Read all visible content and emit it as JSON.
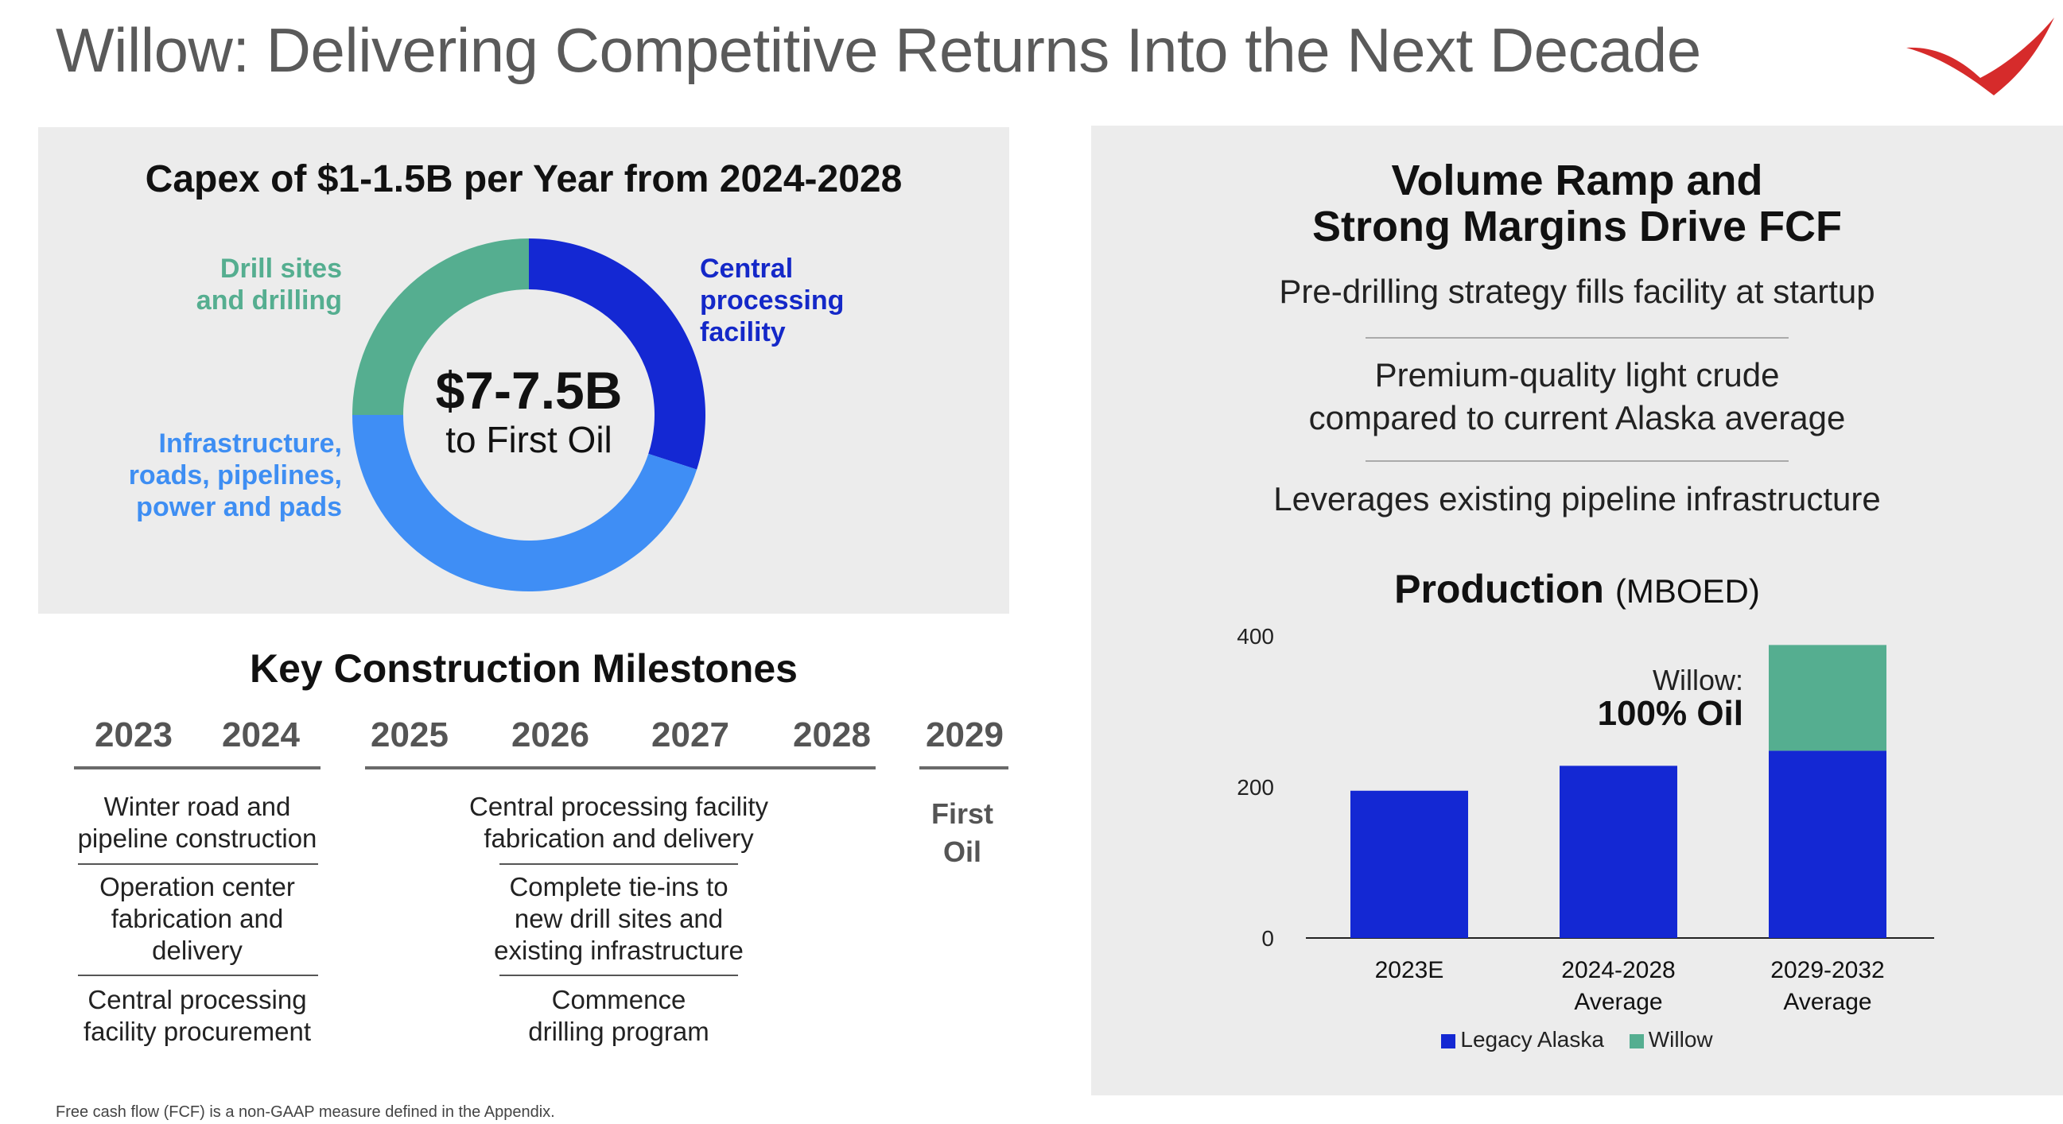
{
  "title": "Willow: Delivering Competitive Returns Into the Next Decade",
  "footnote": "Free cash flow (FCF) is a non-GAAP measure defined in the Appendix.",
  "colors": {
    "legacy": "#1428d3",
    "willow": "#55ae90",
    "cpf": "#1428d3",
    "infra": "#3f8ef5",
    "drill": "#55ae90",
    "logo": "#d62b2b"
  },
  "capex": {
    "title": "Capex of $1-1.5B per Year from 2024-2028",
    "center_big": "$7-7.5B",
    "center_small": "to First Oil",
    "segments": [
      {
        "label": "Central processing facility",
        "lines": [
          "Central",
          "processing",
          "facility"
        ],
        "share": 0.3,
        "color": "#1428d3"
      },
      {
        "label": "Infrastructure, roads, pipelines, power and pads",
        "lines": [
          "Infrastructure,",
          "roads, pipelines,",
          "power and pads"
        ],
        "share": 0.45,
        "color": "#3f8ef5"
      },
      {
        "label": "Drill sites and drilling",
        "lines": [
          "Drill sites",
          "and drilling"
        ],
        "share": 0.25,
        "color": "#55ae90"
      }
    ]
  },
  "milestones": {
    "title": "Key Construction Milestones",
    "years": [
      "2023",
      "2024",
      "2025",
      "2026",
      "2027",
      "2028",
      "2029"
    ],
    "col1": [
      "Winter road and\npipeline construction",
      "Operation center\nfabrication and\ndelivery",
      "Central processing\nfacility procurement"
    ],
    "col2": [
      "Central processing facility\nfabrication and delivery",
      "Complete tie-ins to\nnew drill sites and\nexisting infrastructure",
      "Commence\ndrilling program"
    ],
    "first_oil": "First\nOil"
  },
  "volume": {
    "title_line1": "Volume Ramp and",
    "title_line2": "Strong Margins Drive FCF",
    "bullets": [
      "Pre-drilling strategy fills facility at startup",
      "Premium-quality light crude\ncompared to current Alaska average",
      "Leverages existing pipeline infrastructure"
    ]
  },
  "production": {
    "title_bold": "Production",
    "title_unit": "(MBOED)",
    "annotation_line1": "Willow:",
    "annotation_line2": "100% Oil"
  },
  "chart_data": {
    "type": "bar",
    "stacked": true,
    "categories": [
      "2023E",
      "2024-2028\nAverage",
      "2029-2032\nAverage"
    ],
    "series": [
      {
        "name": "Legacy Alaska",
        "values": [
          195,
          228,
          248
        ],
        "color": "#1428d3"
      },
      {
        "name": "Willow",
        "values": [
          0,
          0,
          140
        ],
        "color": "#55ae90"
      }
    ],
    "yticks": [
      0,
      200,
      400
    ],
    "ylim": [
      0,
      400
    ],
    "legend_position": "bottom"
  }
}
